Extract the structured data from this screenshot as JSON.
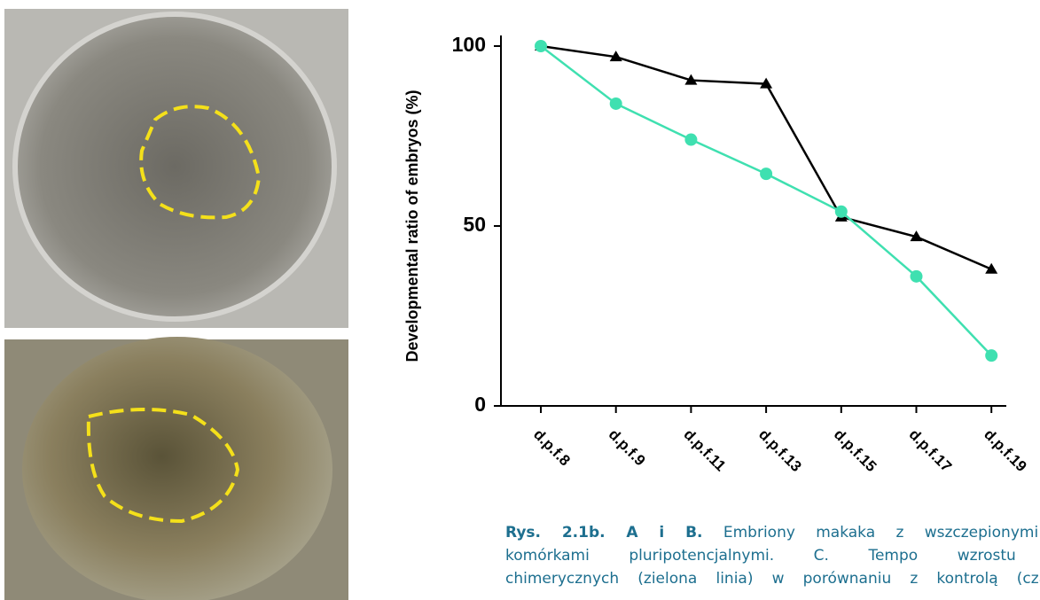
{
  "chart_data": {
    "type": "line",
    "ylabel": "Developmental ratio of embryos (%)",
    "categories": [
      "d.p.f.8",
      "d.p.f.9",
      "d.p.f.11",
      "d.p.f.13",
      "d.p.f.15",
      "d.p.f.17",
      "d.p.f.19"
    ],
    "series": [
      {
        "color": "#000000",
        "marker": "triangle",
        "values": [
          100,
          97,
          90.5,
          89.5,
          52.5,
          47,
          38
        ]
      },
      {
        "color": "#3fe0b0",
        "marker": "circle",
        "values": [
          100,
          84,
          74,
          64.5,
          54,
          36,
          14
        ]
      }
    ],
    "ylim": [
      0,
      100
    ],
    "yticks": [
      0,
      50,
      100
    ]
  },
  "caption": {
    "label": "Rys. 2.1b. A i B.",
    "lines": [
      "Embriony makaka z wszczepionymi lu",
      "komórkami pluripotencjalnymi. C. Tempo wzrostu ko",
      "chimerycznych (zielona linia) w porównaniu z kontrolą (czarna"
    ]
  }
}
